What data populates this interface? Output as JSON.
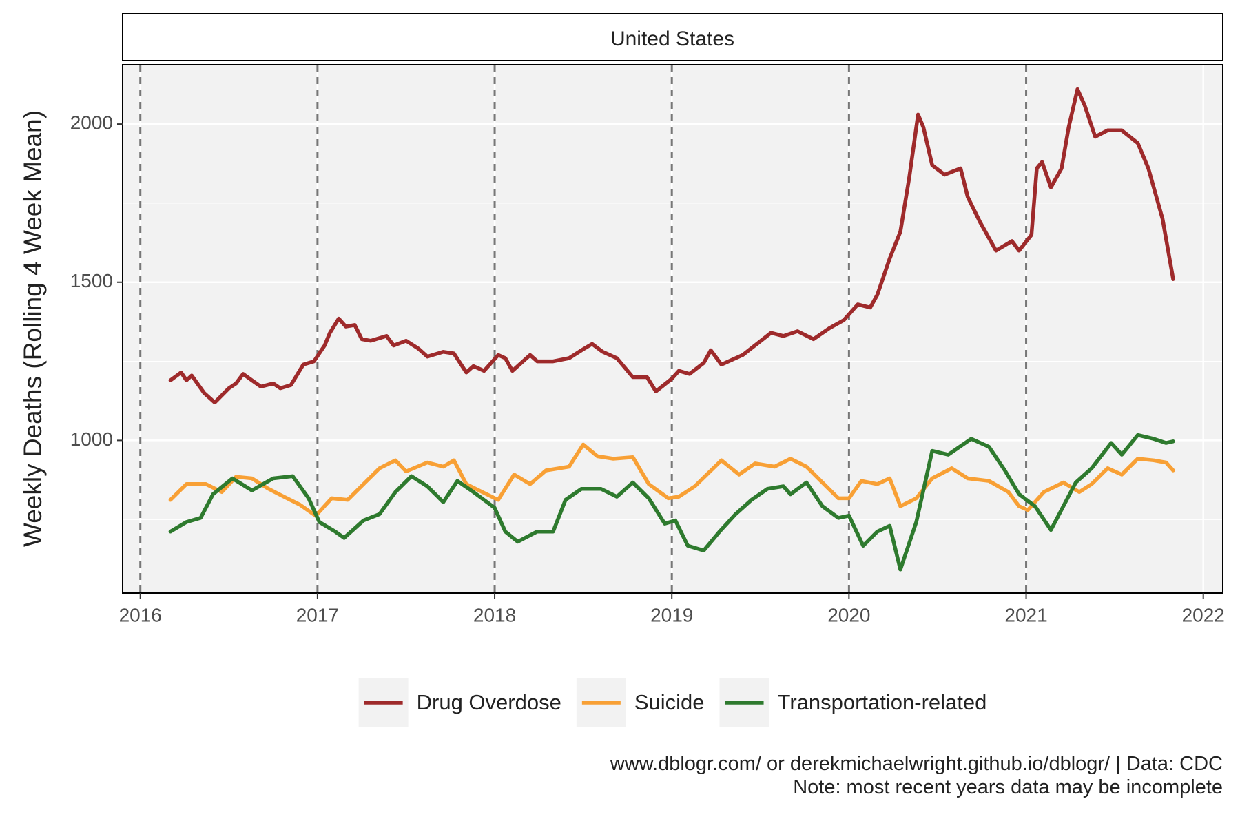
{
  "chart_data": {
    "type": "line",
    "facet_label": "United States",
    "y_label": "Weekly Deaths (Rolling 4 Week Mean)",
    "caption": [
      "www.dblogr.com/ or derekmichaelwright.github.io/dblogr/ | Data: CDC",
      "Note: most recent years data may be incomplete"
    ],
    "xlim": [
      2015.9,
      2022.11
    ],
    "xticks": [
      2016,
      2017,
      2018,
      2019,
      2020,
      2021,
      2022
    ],
    "ylim": [
      517.5,
      2187.5
    ],
    "yticks": [
      1000,
      1500,
      2000
    ],
    "y_minor_ticks": [
      750,
      1250,
      1750
    ],
    "vlines": [
      2016,
      2017,
      2018,
      2019,
      2020,
      2021
    ],
    "grid": true,
    "legend": "bottom",
    "series": [
      {
        "name": "Drug Overdose",
        "color": "#9e2a2b",
        "x": [
          2016.17,
          2016.23,
          2016.26,
          2016.29,
          2016.36,
          2016.42,
          2016.5,
          2016.54,
          2016.58,
          2016.63,
          2016.68,
          2016.75,
          2016.79,
          2016.85,
          2016.92,
          2016.98,
          2017.04,
          2017.07,
          2017.12,
          2017.16,
          2017.21,
          2017.25,
          2017.3,
          2017.39,
          2017.43,
          2017.5,
          2017.57,
          2017.62,
          2017.71,
          2017.77,
          2017.84,
          2017.88,
          2017.94,
          2018.02,
          2018.06,
          2018.1,
          2018.2,
          2018.24,
          2018.33,
          2018.42,
          2018.49,
          2018.55,
          2018.61,
          2018.69,
          2018.78,
          2018.86,
          2018.91,
          2019.0,
          2019.04,
          2019.1,
          2019.18,
          2019.22,
          2019.28,
          2019.4,
          2019.48,
          2019.56,
          2019.63,
          2019.71,
          2019.8,
          2019.89,
          2019.97,
          2020.05,
          2020.12,
          2020.16,
          2020.23,
          2020.29,
          2020.34,
          2020.39,
          2020.42,
          2020.47,
          2020.54,
          2020.63,
          2020.67,
          2020.74,
          2020.83,
          2020.92,
          2020.96,
          2021.03,
          2021.06,
          2021.09,
          2021.14,
          2021.2,
          2021.24,
          2021.29,
          2021.33,
          2021.39,
          2021.46,
          2021.54,
          2021.63,
          2021.69,
          2021.77,
          2021.83
        ],
        "values": [
          1190,
          1215,
          1190,
          1205,
          1150,
          1120,
          1165,
          1180,
          1210,
          1190,
          1170,
          1180,
          1165,
          1175,
          1240,
          1250,
          1300,
          1340,
          1385,
          1360,
          1365,
          1320,
          1315,
          1330,
          1300,
          1315,
          1290,
          1265,
          1280,
          1275,
          1215,
          1235,
          1220,
          1270,
          1260,
          1220,
          1270,
          1250,
          1250,
          1260,
          1285,
          1305,
          1280,
          1260,
          1200,
          1200,
          1155,
          1195,
          1220,
          1210,
          1245,
          1285,
          1240,
          1270,
          1305,
          1340,
          1330,
          1345,
          1320,
          1355,
          1380,
          1430,
          1420,
          1460,
          1575,
          1660,
          1830,
          2030,
          1990,
          1870,
          1840,
          1860,
          1770,
          1690,
          1600,
          1630,
          1600,
          1650,
          1860,
          1880,
          1800,
          1860,
          1990,
          2110,
          2060,
          1960,
          1980,
          1980,
          1940,
          1860,
          1700,
          1510
        ]
      },
      {
        "name": "Suicide",
        "color": "#f8a035",
        "x": [
          2016.17,
          2016.26,
          2016.37,
          2016.46,
          2016.54,
          2016.63,
          2016.72,
          2016.81,
          2016.9,
          2016.99,
          2017.08,
          2017.17,
          2017.26,
          2017.35,
          2017.44,
          2017.5,
          2017.62,
          2017.71,
          2017.77,
          2017.84,
          2017.93,
          2018.02,
          2018.11,
          2018.2,
          2018.29,
          2018.42,
          2018.5,
          2018.58,
          2018.67,
          2018.78,
          2018.87,
          2018.98,
          2019.04,
          2019.13,
          2019.28,
          2019.38,
          2019.47,
          2019.58,
          2019.67,
          2019.76,
          2019.85,
          2019.94,
          2020.0,
          2020.07,
          2020.16,
          2020.23,
          2020.29,
          2020.38,
          2020.47,
          2020.58,
          2020.67,
          2020.79,
          2020.9,
          2020.96,
          2021.01,
          2021.1,
          2021.21,
          2021.3,
          2021.37,
          2021.46,
          2021.54,
          2021.63,
          2021.72,
          2021.79,
          2021.83
        ],
        "values": [
          812,
          862,
          862,
          837,
          885,
          880,
          848,
          822,
          797,
          762,
          817,
          812,
          862,
          912,
          937,
          902,
          930,
          917,
          937,
          862,
          837,
          812,
          892,
          862,
          905,
          917,
          987,
          950,
          942,
          947,
          862,
          817,
          822,
          855,
          937,
          892,
          927,
          917,
          942,
          917,
          867,
          817,
          817,
          872,
          862,
          880,
          792,
          817,
          880,
          912,
          880,
          872,
          837,
          792,
          780,
          837,
          867,
          837,
          862,
          912,
          892,
          942,
          937,
          930,
          905
        ]
      },
      {
        "name": "Transportation-related",
        "color": "#2e7a2e",
        "x": [
          2016.17,
          2016.26,
          2016.34,
          2016.41,
          2016.52,
          2016.63,
          2016.75,
          2016.86,
          2016.95,
          2017.01,
          2017.1,
          2017.15,
          2017.26,
          2017.35,
          2017.44,
          2017.53,
          2017.62,
          2017.71,
          2017.79,
          2017.88,
          2018.0,
          2018.06,
          2018.13,
          2018.24,
          2018.33,
          2018.4,
          2018.49,
          2018.6,
          2018.69,
          2018.78,
          2018.87,
          2018.96,
          2019.02,
          2019.09,
          2019.18,
          2019.27,
          2019.36,
          2019.45,
          2019.54,
          2019.63,
          2019.67,
          2019.76,
          2019.85,
          2019.94,
          2020.0,
          2020.08,
          2020.16,
          2020.23,
          2020.29,
          2020.38,
          2020.47,
          2020.56,
          2020.69,
          2020.79,
          2020.88,
          2020.96,
          2021.05,
          2021.14,
          2021.21,
          2021.28,
          2021.37,
          2021.48,
          2021.54,
          2021.63,
          2021.72,
          2021.79,
          2021.83
        ],
        "values": [
          712,
          742,
          755,
          830,
          880,
          842,
          880,
          887,
          817,
          742,
          712,
          692,
          747,
          767,
          837,
          887,
          855,
          805,
          872,
          837,
          787,
          712,
          680,
          712,
          712,
          812,
          847,
          847,
          822,
          867,
          817,
          737,
          747,
          667,
          652,
          712,
          767,
          812,
          847,
          855,
          830,
          867,
          792,
          755,
          762,
          667,
          712,
          730,
          592,
          742,
          967,
          955,
          1005,
          980,
          905,
          830,
          792,
          717,
          792,
          867,
          912,
          992,
          955,
          1017,
          1005,
          992,
          997
        ]
      }
    ]
  }
}
